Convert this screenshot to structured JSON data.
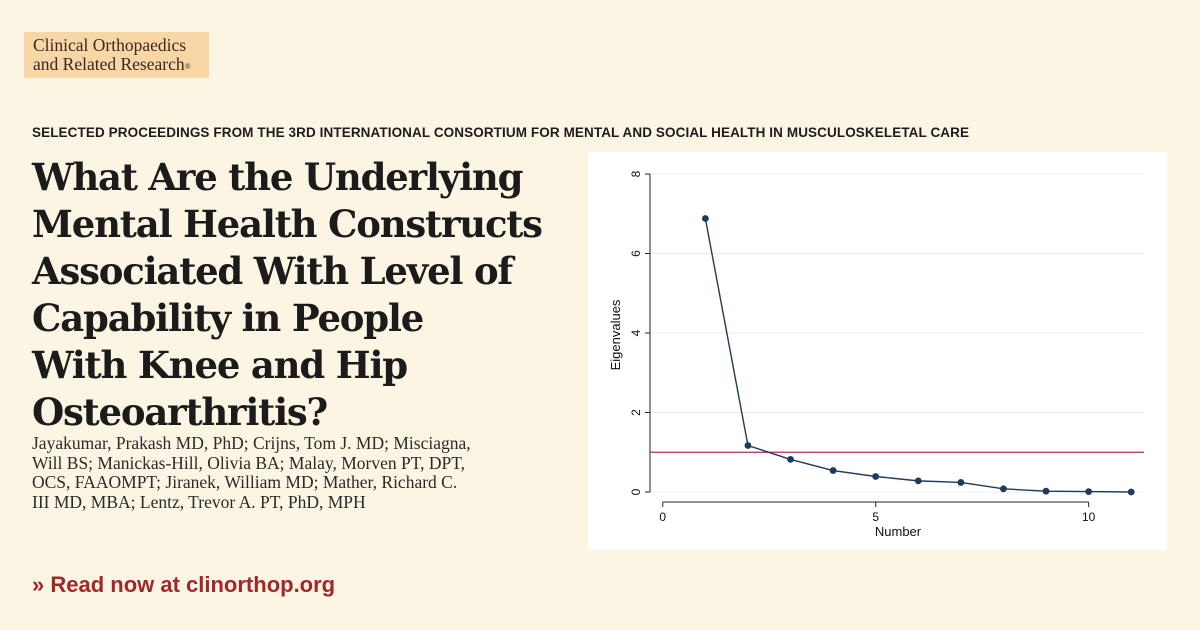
{
  "journal": {
    "logo_line1": "Clinical Orthopaedics",
    "logo_line2": "and Related Research",
    "logo_mark": "®",
    "brand_color": "#f8d6a6"
  },
  "kicker": "SELECTED PROCEEDINGS FROM THE 3RD INTERNATIONAL CONSORTIUM FOR MENTAL AND SOCIAL HEALTH IN MUSCULOSKELETAL CARE",
  "article": {
    "title_lines": [
      "What Are the Underlying",
      "Mental Health Constructs",
      "Associated With Level of",
      "Capability in People",
      "With Knee and Hip",
      "Osteoarthritis?"
    ],
    "author_lines": [
      "Jayakumar, Prakash MD, PhD; Crijns, Tom J. MD; Misciagna,",
      "Will BS; Manickas-Hill, Olivia BA; Malay, Morven PT, DPT,",
      "OCS, FAAOMPT; Jiranek, William MD; Mather, Richard C.",
      "III MD, MBA; Lentz, Trevor A. PT, PhD, MPH"
    ]
  },
  "cta": {
    "label": "» Read now at clinorthop.org",
    "color": "#a3262a"
  },
  "chart_data": {
    "type": "line",
    "title": "",
    "xlabel": "Number",
    "ylabel": "Eigenvalues",
    "xlim": [
      -0.3,
      11.3
    ],
    "ylim": [
      0,
      8
    ],
    "x_ticks": [
      0,
      5,
      10
    ],
    "y_ticks": [
      0,
      2,
      4,
      6,
      8
    ],
    "grid": "horizontal",
    "series": [
      {
        "x": [
          1,
          2,
          3,
          4,
          5,
          6,
          7,
          8,
          9,
          10,
          11
        ],
        "y": [
          6.88,
          1.17,
          0.82,
          0.54,
          0.39,
          0.28,
          0.24,
          0.08,
          0.02,
          0.01,
          0.0
        ],
        "color": "#1f3b5c"
      }
    ],
    "reference_line": {
      "y": 1,
      "color": "#b0304a"
    }
  }
}
